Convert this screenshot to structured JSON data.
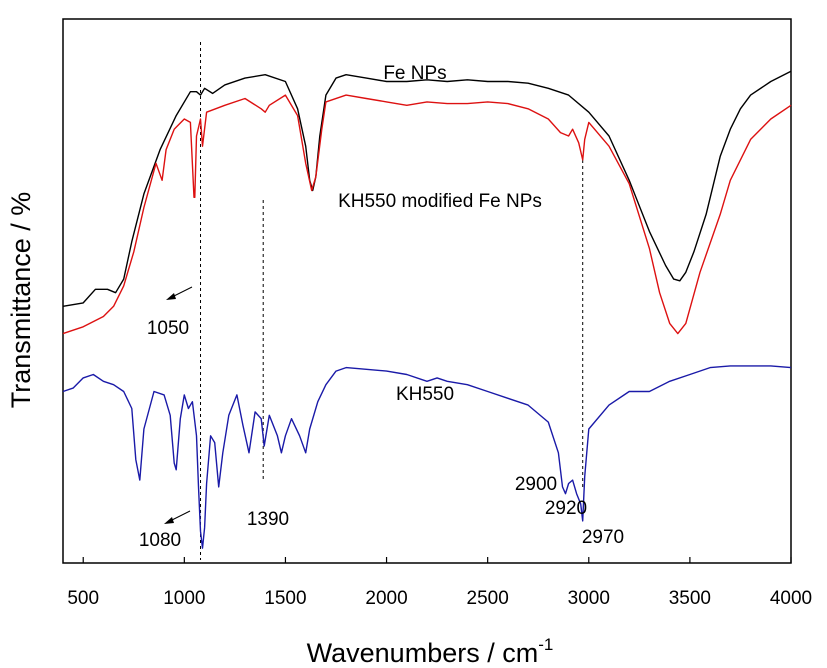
{
  "chart_data": {
    "type": "line",
    "xlabel": "Wavenumbers / cm",
    "xlabel_sup": "-1",
    "ylabel": "Transmittance / %",
    "xlim": [
      400,
      4000
    ],
    "y_ticks_shown": false,
    "grid": false,
    "x_ticks": [
      "500",
      "1000",
      "1500",
      "2000",
      "2500",
      "3000",
      "3500",
      "4000"
    ],
    "series": [
      {
        "name": "Fe NPs",
        "color": "#000000",
        "points": [
          [
            400,
            8
          ],
          [
            500,
            9
          ],
          [
            560,
            13
          ],
          [
            620,
            13
          ],
          [
            660,
            12
          ],
          [
            700,
            16
          ],
          [
            740,
            27
          ],
          [
            800,
            41
          ],
          [
            880,
            54
          ],
          [
            960,
            64
          ],
          [
            1030,
            71
          ],
          [
            1060,
            71
          ],
          [
            1080,
            70
          ],
          [
            1100,
            72
          ],
          [
            1140,
            70.5
          ],
          [
            1200,
            73
          ],
          [
            1300,
            75
          ],
          [
            1400,
            76
          ],
          [
            1500,
            74
          ],
          [
            1560,
            66
          ],
          [
            1600,
            55
          ],
          [
            1620,
            45
          ],
          [
            1635,
            42
          ],
          [
            1650,
            46
          ],
          [
            1670,
            58
          ],
          [
            1700,
            70
          ],
          [
            1750,
            75
          ],
          [
            1800,
            76
          ],
          [
            1900,
            75
          ],
          [
            2000,
            74
          ],
          [
            2100,
            74
          ],
          [
            2200,
            74.5
          ],
          [
            2300,
            74
          ],
          [
            2400,
            74.5
          ],
          [
            2500,
            74
          ],
          [
            2600,
            74
          ],
          [
            2700,
            73.5
          ],
          [
            2800,
            72
          ],
          [
            2900,
            70
          ],
          [
            3000,
            65
          ],
          [
            3100,
            58
          ],
          [
            3200,
            45
          ],
          [
            3300,
            30
          ],
          [
            3380,
            20
          ],
          [
            3420,
            16
          ],
          [
            3450,
            15.5
          ],
          [
            3480,
            18
          ],
          [
            3520,
            24
          ],
          [
            3580,
            35
          ],
          [
            3650,
            52
          ],
          [
            3700,
            60
          ],
          [
            3750,
            66
          ],
          [
            3800,
            70
          ],
          [
            3900,
            74
          ],
          [
            4000,
            77
          ]
        ]
      },
      {
        "name": "KH550 modified Fe NPs",
        "color": "#dd1111",
        "points": [
          [
            400,
            0
          ],
          [
            500,
            2
          ],
          [
            600,
            5
          ],
          [
            650,
            8
          ],
          [
            700,
            14
          ],
          [
            750,
            24
          ],
          [
            800,
            37
          ],
          [
            860,
            50
          ],
          [
            890,
            45
          ],
          [
            910,
            54
          ],
          [
            950,
            60
          ],
          [
            1000,
            63
          ],
          [
            1030,
            62
          ],
          [
            1048,
            40
          ],
          [
            1052,
            40
          ],
          [
            1060,
            58
          ],
          [
            1080,
            63
          ],
          [
            1090,
            55
          ],
          [
            1110,
            65
          ],
          [
            1200,
            67
          ],
          [
            1300,
            69
          ],
          [
            1380,
            66
          ],
          [
            1400,
            65
          ],
          [
            1420,
            67
          ],
          [
            1500,
            70
          ],
          [
            1560,
            64
          ],
          [
            1600,
            50
          ],
          [
            1630,
            42
          ],
          [
            1650,
            46
          ],
          [
            1680,
            60
          ],
          [
            1700,
            68
          ],
          [
            1800,
            70
          ],
          [
            1900,
            69
          ],
          [
            2000,
            68
          ],
          [
            2100,
            67
          ],
          [
            2200,
            68
          ],
          [
            2300,
            67.5
          ],
          [
            2400,
            67.5
          ],
          [
            2500,
            68
          ],
          [
            2600,
            67.5
          ],
          [
            2700,
            66
          ],
          [
            2800,
            63
          ],
          [
            2860,
            59
          ],
          [
            2900,
            58
          ],
          [
            2920,
            60
          ],
          [
            2950,
            56
          ],
          [
            2970,
            51
          ],
          [
            2980,
            57
          ],
          [
            3000,
            62
          ],
          [
            3100,
            55
          ],
          [
            3200,
            44
          ],
          [
            3300,
            25
          ],
          [
            3350,
            12
          ],
          [
            3400,
            3
          ],
          [
            3440,
            0
          ],
          [
            3480,
            3
          ],
          [
            3550,
            18
          ],
          [
            3650,
            35
          ],
          [
            3700,
            45
          ],
          [
            3800,
            57
          ],
          [
            3900,
            63
          ],
          [
            4000,
            67
          ]
        ]
      },
      {
        "name": "KH550",
        "color": "#1a1aa8",
        "points": [
          [
            400,
            -17
          ],
          [
            450,
            -16
          ],
          [
            500,
            -13
          ],
          [
            550,
            -12
          ],
          [
            600,
            -14
          ],
          [
            650,
            -15
          ],
          [
            700,
            -17
          ],
          [
            740,
            -22
          ],
          [
            760,
            -37
          ],
          [
            780,
            -43
          ],
          [
            800,
            -28
          ],
          [
            850,
            -17
          ],
          [
            900,
            -18
          ],
          [
            930,
            -24
          ],
          [
            950,
            -38
          ],
          [
            960,
            -40
          ],
          [
            980,
            -25
          ],
          [
            1000,
            -18
          ],
          [
            1020,
            -22
          ],
          [
            1040,
            -20
          ],
          [
            1060,
            -30
          ],
          [
            1070,
            -45
          ],
          [
            1080,
            -58
          ],
          [
            1090,
            -63
          ],
          [
            1100,
            -57
          ],
          [
            1110,
            -44
          ],
          [
            1130,
            -30
          ],
          [
            1150,
            -32
          ],
          [
            1170,
            -45
          ],
          [
            1190,
            -35
          ],
          [
            1220,
            -24
          ],
          [
            1260,
            -18
          ],
          [
            1290,
            -27
          ],
          [
            1320,
            -35
          ],
          [
            1350,
            -23
          ],
          [
            1380,
            -25
          ],
          [
            1395,
            -33
          ],
          [
            1420,
            -24
          ],
          [
            1460,
            -30
          ],
          [
            1480,
            -35
          ],
          [
            1500,
            -30
          ],
          [
            1530,
            -25
          ],
          [
            1570,
            -30
          ],
          [
            1600,
            -35
          ],
          [
            1620,
            -28
          ],
          [
            1660,
            -20
          ],
          [
            1700,
            -15
          ],
          [
            1750,
            -11
          ],
          [
            1800,
            -10
          ],
          [
            1900,
            -10.5
          ],
          [
            2000,
            -11
          ],
          [
            2100,
            -12
          ],
          [
            2200,
            -14
          ],
          [
            2250,
            -13
          ],
          [
            2300,
            -14
          ],
          [
            2400,
            -15
          ],
          [
            2500,
            -17
          ],
          [
            2600,
            -19
          ],
          [
            2700,
            -21
          ],
          [
            2800,
            -26
          ],
          [
            2850,
            -35
          ],
          [
            2870,
            -45
          ],
          [
            2885,
            -47
          ],
          [
            2900,
            -44
          ],
          [
            2920,
            -43
          ],
          [
            2940,
            -47
          ],
          [
            2960,
            -50
          ],
          [
            2970,
            -55
          ],
          [
            2980,
            -42
          ],
          [
            3000,
            -28
          ],
          [
            3100,
            -21
          ],
          [
            3200,
            -17
          ],
          [
            3300,
            -17
          ],
          [
            3400,
            -14
          ],
          [
            3500,
            -12
          ],
          [
            3600,
            -10
          ],
          [
            3700,
            -9.5
          ],
          [
            3800,
            -9.5
          ],
          [
            3900,
            -9.5
          ],
          [
            4000,
            -10
          ]
        ]
      }
    ],
    "ylim": [
      -65,
      90
    ],
    "annotations": [
      {
        "text": "Fe NPs",
        "x": 2100,
        "y": 80
      },
      {
        "text": "KH550 modified Fe NPs",
        "x": 2150,
        "y": 78.5,
        "anchor_series": "red_label"
      },
      {
        "text": "KH550",
        "x": 2050,
        "y": -20
      },
      {
        "text": "1050",
        "x": 900,
        "y": 18
      },
      {
        "text": "1080",
        "x": 880,
        "y": -68
      },
      {
        "text": "1390",
        "x": 1430,
        "y": -58
      },
      {
        "text": "2900",
        "x": 2760,
        "y": -45
      },
      {
        "text": "2920",
        "x": 2880,
        "y": -56
      },
      {
        "text": "2970",
        "x": 3070,
        "y": -67
      }
    ],
    "reference_lines_x": [
      1080,
      1390,
      2970
    ]
  }
}
